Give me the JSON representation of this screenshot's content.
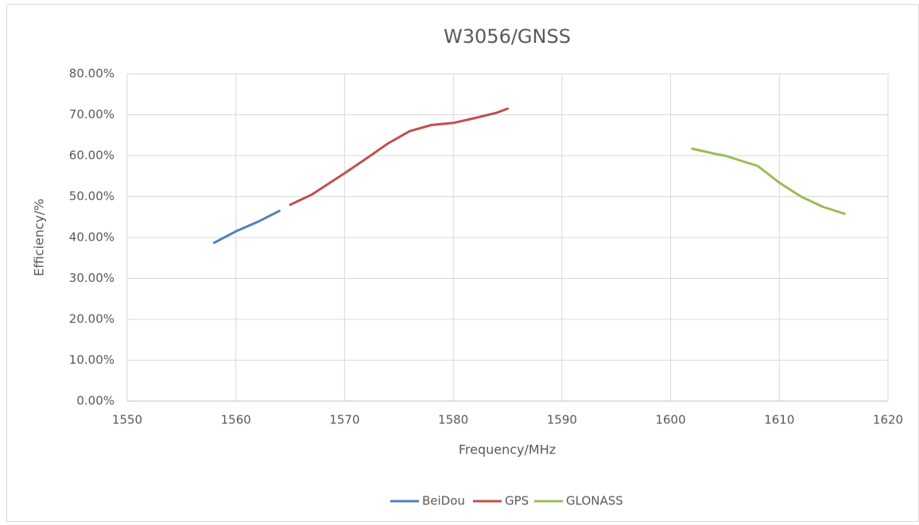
{
  "chart_data": {
    "type": "line",
    "title": "W3056/GNSS",
    "x_label": "Frequency/MHz",
    "y_label": "Efficiency/%",
    "xlim": [
      1550,
      1620
    ],
    "xticks": [
      1550,
      1560,
      1570,
      1580,
      1590,
      1600,
      1610,
      1620
    ],
    "ylim": [
      0,
      80
    ],
    "yticks": [
      {
        "value": 0,
        "label": "0.00%"
      },
      {
        "value": 10,
        "label": "10.00%"
      },
      {
        "value": 20,
        "label": "20.00%"
      },
      {
        "value": 30,
        "label": "30.00%"
      },
      {
        "value": 40,
        "label": "40.00%"
      },
      {
        "value": 50,
        "label": "50.00%"
      },
      {
        "value": 60,
        "label": "60.00%"
      },
      {
        "value": 70,
        "label": "70.00%"
      },
      {
        "value": 80,
        "label": "80.00%"
      }
    ],
    "grid": true,
    "legend": "bottom",
    "series": [
      {
        "name": "BeiDou",
        "color": "#4f81bd",
        "x": [
          1558,
          1560,
          1562,
          1564
        ],
        "values": [
          38.7,
          41.5,
          43.8,
          46.5
        ]
      },
      {
        "name": "GPS",
        "color": "#c0504d",
        "x": [
          1565,
          1567,
          1570,
          1572,
          1574,
          1576,
          1578,
          1580,
          1582,
          1584,
          1585
        ],
        "values": [
          48.0,
          50.5,
          55.7,
          59.3,
          63.0,
          66.0,
          67.5,
          68.0,
          69.2,
          70.5,
          71.5
        ]
      },
      {
        "name": "GLONASS",
        "color": "#9bbb59",
        "x": [
          1602,
          1604,
          1605,
          1608,
          1610,
          1612,
          1614,
          1616
        ],
        "values": [
          61.7,
          60.5,
          60.0,
          57.5,
          53.4,
          50.0,
          47.5,
          45.8
        ]
      }
    ]
  }
}
